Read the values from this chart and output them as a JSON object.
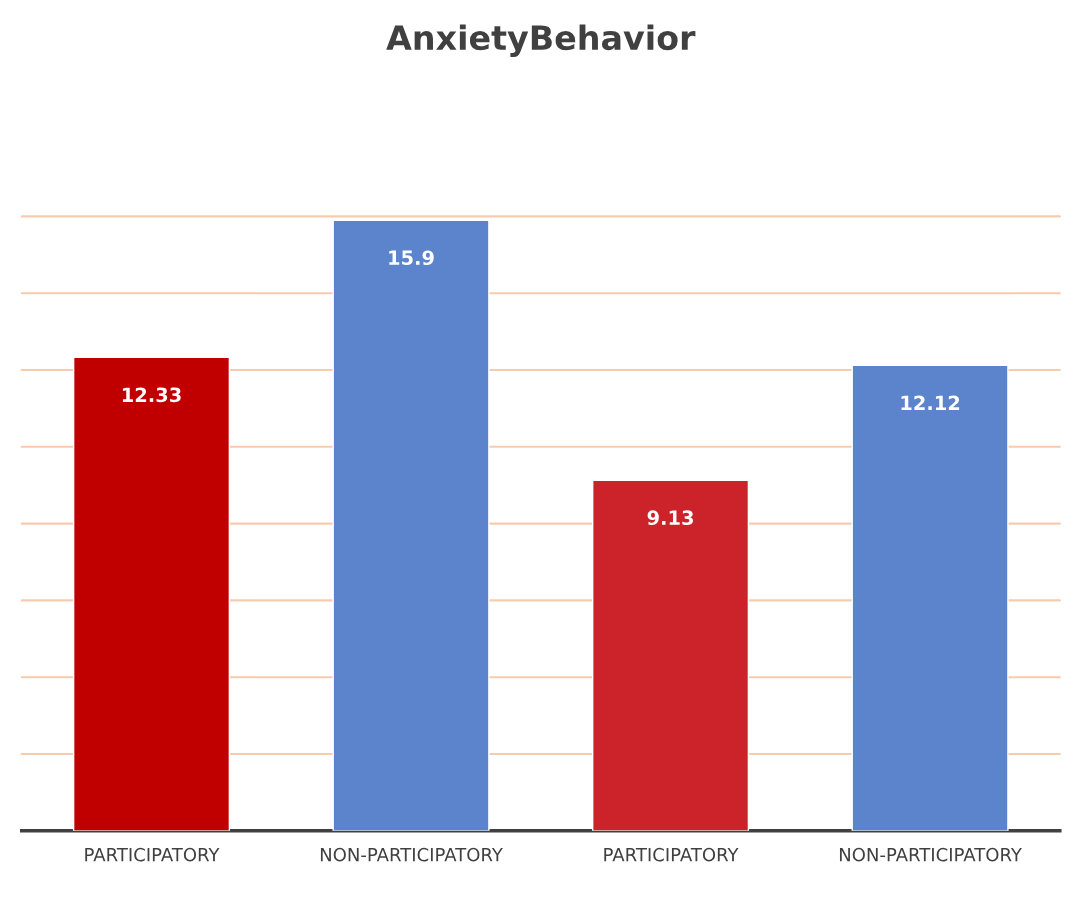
{
  "chart_data": {
    "type": "bar",
    "title": "AnxietyBehavior",
    "categories": [
      "PARTICIPATORY",
      "NON-PARTICIPATORY",
      "PARTICIPATORY",
      "NON-PARTICIPATORY"
    ],
    "values": [
      12.33,
      15.9,
      9.13,
      12.12
    ],
    "colors": [
      "#c00000",
      "#5b84cc",
      "#cc2229",
      "#5b84cc"
    ],
    "ylim": [
      0,
      16
    ],
    "yticks": [
      {
        "value": 0,
        "label": null
      },
      {
        "value": 2,
        "label": null
      },
      {
        "value": 4,
        "label": null
      },
      {
        "value": 6,
        "label": null
      },
      {
        "value": 8,
        "label": null
      },
      {
        "value": 10,
        "label": null
      },
      {
        "value": 12,
        "label": null
      },
      {
        "value": 14,
        "label": null
      },
      {
        "value": 16,
        "label": null
      }
    ],
    "grid": "y",
    "data_labels": true,
    "tick_labels": "x"
  }
}
